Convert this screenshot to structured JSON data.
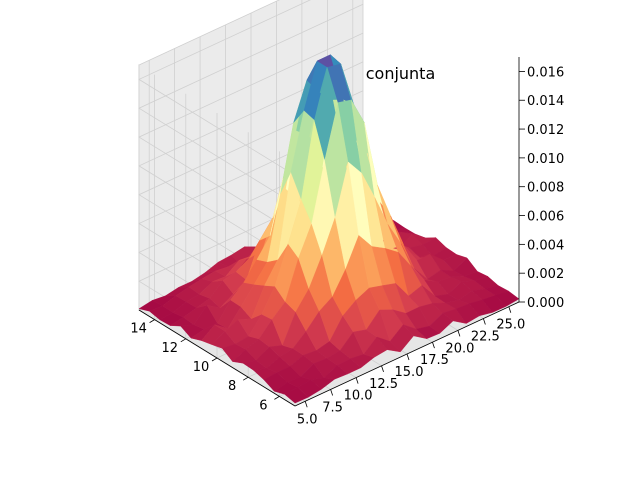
{
  "chart_data": {
    "type": "surface3d",
    "title": "Funcion densidad conjunta",
    "x_axis": {
      "label": "",
      "range": [
        5,
        15
      ],
      "ticks": [
        "6",
        "8",
        "10",
        "12",
        "14"
      ],
      "tick_values": [
        6,
        8,
        10,
        12,
        14
      ]
    },
    "y_axis": {
      "label": "",
      "range": [
        4,
        26
      ],
      "ticks": [
        "5.0",
        "7.5",
        "10.0",
        "12.5",
        "15.0",
        "17.5",
        "20.0",
        "22.5",
        "25.0"
      ],
      "tick_values": [
        5,
        7.5,
        10,
        12.5,
        15,
        17.5,
        20,
        22.5,
        25
      ]
    },
    "z_axis": {
      "label": "",
      "range": [
        0,
        0.017
      ],
      "ticks": [
        "0.000",
        "0.002",
        "0.004",
        "0.006",
        "0.008",
        "0.010",
        "0.012",
        "0.014",
        "0.016"
      ],
      "tick_values": [
        0,
        0.002,
        0.004,
        0.006,
        0.008,
        0.01,
        0.012,
        0.014,
        0.016
      ]
    },
    "surface": {
      "description": "Noisy bivariate density peaked near x=10, y=15",
      "peak": {
        "x": 10,
        "y": 15,
        "z": 0.0168
      },
      "spread": {
        "sx": 1.5,
        "sy": 2.6
      },
      "noise_level": 0.0023,
      "grid": {
        "x_start": 5,
        "x_end": 15,
        "nx": 16,
        "y_start": 4,
        "y_end": 26,
        "ny": 18
      },
      "colormap": "Spectral"
    },
    "grid": true
  }
}
